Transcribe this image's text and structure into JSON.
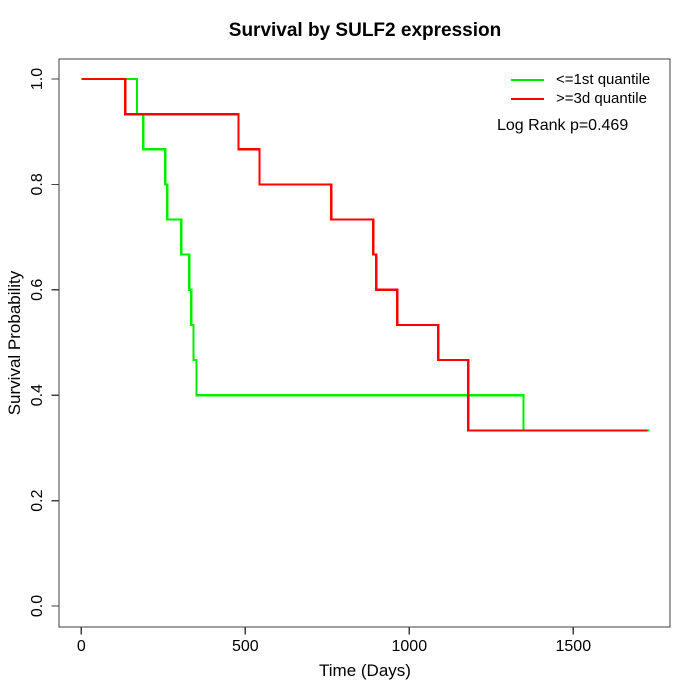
{
  "chart_data": {
    "type": "line",
    "subtype": "kaplan-meier-step",
    "title": "Survival by SULF2 expression",
    "annotation": "Log Rank p=0.469",
    "log_rank_p": 0.469,
    "grid": false,
    "legend_position": "top-right",
    "x_axis": {
      "label": "Time (Days)",
      "range": [
        0,
        1800
      ],
      "ticks": [
        {
          "value": 0,
          "label": "0"
        },
        {
          "value": 500,
          "label": "500"
        },
        {
          "value": 1000,
          "label": "1000"
        },
        {
          "value": 1500,
          "label": "1500"
        }
      ]
    },
    "y_axis": {
      "label": "Survival Probability",
      "range": [
        0,
        1
      ],
      "ticks": [
        {
          "value": 0.0,
          "label": "0.0"
        },
        {
          "value": 0.2,
          "label": "0.2"
        },
        {
          "value": 0.4,
          "label": "0.4"
        },
        {
          "value": 0.6,
          "label": "0.6"
        },
        {
          "value": 0.8,
          "label": "0.8"
        },
        {
          "value": 1.0,
          "label": "1.0"
        }
      ]
    },
    "series": [
      {
        "name": "<=1st quantile",
        "key": "low-expression-green",
        "color": "#00ee00",
        "steps": [
          [
            0,
            1.0
          ],
          [
            170,
            0.9333
          ],
          [
            189,
            0.8667
          ],
          [
            256,
            0.8
          ],
          [
            262,
            0.7333
          ],
          [
            305,
            0.6667
          ],
          [
            329,
            0.6
          ],
          [
            335,
            0.5333
          ],
          [
            342,
            0.4667
          ],
          [
            351,
            0.4
          ],
          [
            1348,
            0.3333
          ],
          [
            1732,
            0.3333
          ]
        ]
      },
      {
        "name": ">=3d quantile",
        "key": "high-expression-red",
        "color": "#ff0000",
        "steps": [
          [
            0,
            1.0
          ],
          [
            134,
            0.9333
          ],
          [
            479,
            0.8667
          ],
          [
            543,
            0.8
          ],
          [
            762,
            0.7333
          ],
          [
            890,
            0.6667
          ],
          [
            899,
            0.6
          ],
          [
            963,
            0.5333
          ],
          [
            1088,
            0.4667
          ],
          [
            1180,
            0.3333
          ],
          [
            1726,
            0.3333
          ]
        ]
      }
    ],
    "axis_color": "#3f3f3f",
    "text_color": "#000000"
  }
}
